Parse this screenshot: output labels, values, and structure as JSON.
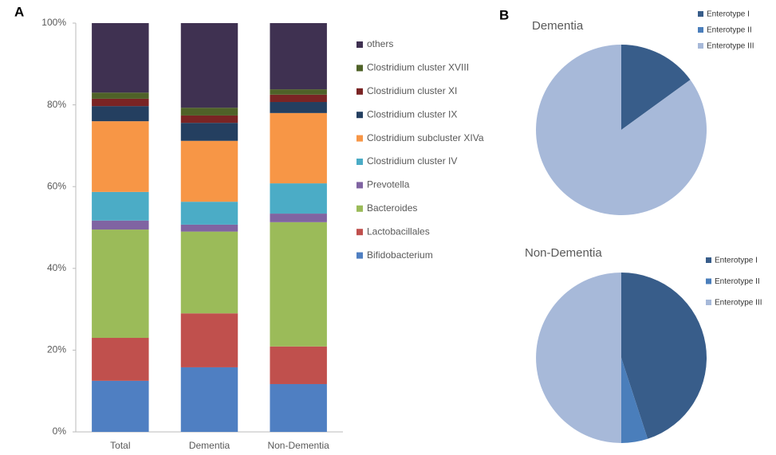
{
  "chart_data": [
    {
      "type": "bar",
      "stacked": true,
      "panel": "A",
      "categories": [
        "Total",
        "Dementia",
        "Non-Dementia"
      ],
      "ylim": [
        0,
        100
      ],
      "yticks": [
        {
          "value": 0,
          "label": "0%"
        },
        {
          "value": 20,
          "label": "20%"
        },
        {
          "value": 40,
          "label": "40%"
        },
        {
          "value": 60,
          "label": "60%"
        },
        {
          "value": 80,
          "label": "80%"
        },
        {
          "value": 100,
          "label": "100%"
        }
      ],
      "series": [
        {
          "name": "Bifidobacterium",
          "color": "#4f7fc2",
          "values": [
            12.5,
            15.8,
            11.7
          ]
        },
        {
          "name": "Lactobacillales",
          "color": "#c0504d",
          "values": [
            10.5,
            13.2,
            9.2
          ]
        },
        {
          "name": "Bacteroides",
          "color": "#9bbb59",
          "values": [
            26.5,
            20,
            30.4
          ]
        },
        {
          "name": "Prevotella",
          "color": "#8064a2",
          "values": [
            2.2,
            1.7,
            2.1
          ]
        },
        {
          "name": "Clostridium cluster IV",
          "color": "#4bacc6",
          "values": [
            7,
            5.6,
            7.4
          ]
        },
        {
          "name": "Clostridium subcluster XIVa",
          "color": "#f79646",
          "values": [
            17.3,
            14.9,
            17.2
          ]
        },
        {
          "name": "Clostridium cluster IX",
          "color": "#243f60",
          "values": [
            3.7,
            4.4,
            2.7
          ]
        },
        {
          "name": "Clostridium cluster XI",
          "color": "#7a2424",
          "values": [
            1.8,
            1.8,
            1.8
          ]
        },
        {
          "name": "Clostridium cluster XVIII",
          "color": "#4f6228",
          "values": [
            1.5,
            1.9,
            1.3
          ]
        },
        {
          "name": "others",
          "color": "#3f3151",
          "values": [
            17,
            20.7,
            16.2
          ]
        }
      ]
    },
    {
      "type": "pie",
      "panel": "B",
      "title": "Dementia",
      "categories": [
        "Enterotype I",
        "Enterotype II",
        "Enterotype III"
      ],
      "values": [
        15,
        0,
        85
      ],
      "colors": [
        "#385d8a",
        "#4a7ebb",
        "#a7b9d9"
      ]
    },
    {
      "type": "pie",
      "title": "Non-Dementia",
      "categories": [
        "Enterotype I",
        "Enterotype II",
        "Enterotype III"
      ],
      "values": [
        45,
        5,
        50
      ],
      "colors": [
        "#385d8a",
        "#4a7ebb",
        "#a7b9d9"
      ]
    }
  ]
}
